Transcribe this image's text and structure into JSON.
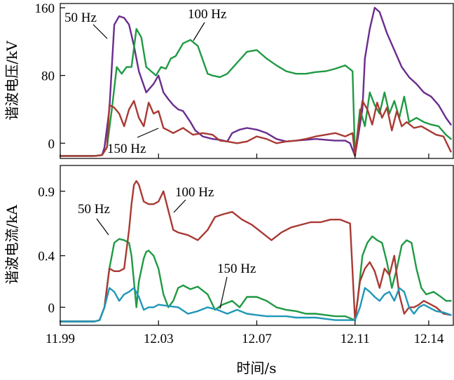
{
  "chart_data": [
    {
      "type": "line",
      "ylabel": "谐波电压/kV",
      "xlabel": "",
      "xlim": [
        11.99,
        12.15
      ],
      "ylim": [
        -18,
        165
      ],
      "yticks": [
        "0",
        "80",
        "160"
      ],
      "ytick_values": [
        0,
        80,
        160
      ],
      "xticks": [
        "11.99",
        "12.03",
        "12.07",
        "12.11",
        "12.14"
      ],
      "xtick_values": [
        11.99,
        12.03,
        12.07,
        12.11,
        12.14
      ],
      "show_xtick_labels": false,
      "series": [
        {
          "name": "50 Hz",
          "color": "#6a2c8e",
          "x": [
            11.99,
            12.0,
            12.004,
            12.007,
            12.008,
            12.01,
            12.012,
            12.014,
            12.016,
            12.018,
            12.02,
            12.022,
            12.025,
            12.028,
            12.03,
            12.032,
            12.034,
            12.036,
            12.038,
            12.04,
            12.043,
            12.045,
            12.048,
            12.052,
            12.055,
            12.058,
            12.06,
            12.063,
            12.066,
            12.07,
            12.074,
            12.078,
            12.082,
            12.086,
            12.09,
            12.094,
            12.098,
            12.102,
            12.106,
            12.108,
            12.11,
            12.113,
            12.114,
            12.116,
            12.118,
            12.12,
            12.123,
            12.126,
            12.129,
            12.132,
            12.135,
            12.138,
            12.141,
            12.144,
            12.147,
            12.149
          ],
          "y": [
            -15,
            -15,
            -15,
            -14,
            -5,
            40,
            140,
            150,
            148,
            140,
            115,
            85,
            60,
            70,
            80,
            60,
            52,
            45,
            40,
            38,
            25,
            15,
            8,
            5,
            4,
            2,
            12,
            16,
            18,
            16,
            12,
            5,
            2,
            3,
            4,
            5,
            4,
            3,
            3,
            0,
            -15,
            40,
            100,
            135,
            160,
            155,
            130,
            110,
            90,
            78,
            70,
            60,
            55,
            45,
            30,
            22
          ]
        },
        {
          "name": "100 Hz",
          "color": "#1f9a44",
          "x": [
            11.99,
            12.0,
            12.004,
            12.007,
            12.009,
            12.011,
            12.013,
            12.015,
            12.017,
            12.019,
            12.021,
            12.023,
            12.025,
            12.027,
            12.029,
            12.031,
            12.033,
            12.035,
            12.037,
            12.04,
            12.043,
            12.046,
            12.05,
            12.052,
            12.055,
            12.058,
            12.062,
            12.066,
            12.07,
            12.074,
            12.078,
            12.082,
            12.086,
            12.09,
            12.094,
            12.098,
            12.102,
            12.106,
            12.109,
            12.11,
            12.112,
            12.114,
            12.116,
            12.118,
            12.12,
            12.122,
            12.124,
            12.126,
            12.128,
            12.13,
            12.132,
            12.135,
            12.138,
            12.141,
            12.144,
            12.147,
            12.149
          ],
          "y": [
            -15,
            -15,
            -15,
            -14,
            -5,
            40,
            90,
            82,
            90,
            90,
            135,
            125,
            90,
            85,
            80,
            90,
            88,
            100,
            103,
            118,
            122,
            115,
            82,
            80,
            78,
            82,
            95,
            108,
            110,
            100,
            92,
            85,
            82,
            82,
            84,
            85,
            88,
            92,
            85,
            -15,
            40,
            20,
            60,
            45,
            35,
            60,
            35,
            50,
            30,
            55,
            25,
            30,
            25,
            22,
            20,
            10,
            5
          ]
        },
        {
          "name": "150 Hz",
          "color": "#a83a33",
          "x": [
            11.99,
            12.0,
            12.004,
            12.007,
            12.009,
            12.01,
            12.012,
            12.014,
            12.016,
            12.018,
            12.02,
            12.022,
            12.024,
            12.026,
            12.028,
            12.03,
            12.032,
            12.034,
            12.036,
            12.04,
            12.044,
            12.048,
            12.052,
            12.055,
            12.058,
            12.062,
            12.066,
            12.07,
            12.074,
            12.078,
            12.082,
            12.086,
            12.09,
            12.094,
            12.098,
            12.102,
            12.106,
            12.109,
            12.11,
            12.111,
            12.113,
            12.115,
            12.117,
            12.119,
            12.121,
            12.123,
            12.125,
            12.127,
            12.129,
            12.131,
            12.134,
            12.137,
            12.14,
            12.143,
            12.146,
            12.149
          ],
          "y": [
            -15,
            -15,
            -15,
            -14,
            -5,
            45,
            42,
            35,
            20,
            40,
            50,
            30,
            20,
            48,
            35,
            38,
            18,
            15,
            12,
            18,
            10,
            12,
            10,
            3,
            2,
            0,
            2,
            8,
            5,
            0,
            2,
            3,
            5,
            8,
            10,
            12,
            8,
            12,
            -15,
            10,
            50,
            40,
            22,
            48,
            30,
            42,
            15,
            38,
            20,
            25,
            18,
            20,
            15,
            10,
            8,
            -10
          ]
        }
      ],
      "annotations": [
        "50 Hz",
        "100 Hz",
        "150 Hz"
      ]
    },
    {
      "type": "line",
      "ylabel": "谐波电流/kA",
      "xlabel": "时间/s",
      "xlim": [
        11.99,
        12.15
      ],
      "ylim": [
        -0.14,
        1.1
      ],
      "yticks": [
        "0",
        "0.4",
        "0.9"
      ],
      "ytick_values": [
        0,
        0.4,
        0.9
      ],
      "xticks": [
        "11.99",
        "12.03",
        "12.07",
        "12.11",
        "12.14"
      ],
      "xtick_values": [
        11.99,
        12.03,
        12.07,
        12.11,
        12.14
      ],
      "show_xtick_labels": true,
      "series": [
        {
          "name": "50 Hz",
          "color": "#1f9a44",
          "x": [
            11.99,
            12.0,
            12.004,
            12.006,
            12.008,
            12.01,
            12.012,
            12.014,
            12.016,
            12.018,
            12.019,
            12.02,
            12.021,
            12.022,
            12.024,
            12.025,
            12.026,
            12.028,
            12.03,
            12.032,
            12.034,
            12.036,
            12.038,
            12.04,
            12.043,
            12.046,
            12.05,
            12.053,
            12.056,
            12.06,
            12.063,
            12.066,
            12.07,
            12.074,
            12.078,
            12.082,
            12.086,
            12.09,
            12.094,
            12.098,
            12.102,
            12.106,
            12.11,
            12.111,
            12.113,
            12.115,
            12.117,
            12.119,
            12.121,
            12.123,
            12.125,
            12.127,
            12.129,
            12.131,
            12.133,
            12.135,
            12.137,
            12.139,
            12.142,
            12.145,
            12.147,
            12.149
          ],
          "y": [
            -0.11,
            -0.11,
            -0.11,
            -0.1,
            0.0,
            0.3,
            0.5,
            0.53,
            0.52,
            0.5,
            0.4,
            0.2,
            0.0,
            0.2,
            0.38,
            0.43,
            0.44,
            0.4,
            0.3,
            0.1,
            0.0,
            0.05,
            0.15,
            0.17,
            0.14,
            0.16,
            0.1,
            -0.02,
            0.02,
            0.05,
            0.0,
            0.08,
            0.08,
            0.05,
            0.0,
            -0.02,
            -0.03,
            -0.05,
            -0.05,
            -0.06,
            -0.07,
            -0.07,
            -0.1,
            0.05,
            0.4,
            0.5,
            0.55,
            0.52,
            0.5,
            0.35,
            0.15,
            0.3,
            0.48,
            0.52,
            0.5,
            0.3,
            0.15,
            0.1,
            0.12,
            0.08,
            0.05,
            0.05
          ]
        },
        {
          "name": "100 Hz",
          "color": "#a83a33",
          "x": [
            11.99,
            12.0,
            12.004,
            12.006,
            12.008,
            12.01,
            12.012,
            12.014,
            12.016,
            12.018,
            12.019,
            12.02,
            12.021,
            12.022,
            12.024,
            12.026,
            12.028,
            12.03,
            12.032,
            12.034,
            12.036,
            12.038,
            12.042,
            12.046,
            12.05,
            12.053,
            12.056,
            12.06,
            12.064,
            12.068,
            12.072,
            12.076,
            12.08,
            12.084,
            12.088,
            12.092,
            12.096,
            12.1,
            12.104,
            12.108,
            12.11,
            12.112,
            12.114,
            12.116,
            12.118,
            12.12,
            12.122,
            12.124,
            12.126,
            12.128,
            12.13,
            12.132,
            12.134,
            12.136,
            12.138,
            12.14,
            12.143,
            12.146,
            12.149
          ],
          "y": [
            -0.11,
            -0.11,
            -0.11,
            -0.1,
            0.0,
            0.3,
            0.28,
            0.28,
            0.3,
            0.6,
            0.8,
            0.95,
            0.98,
            0.95,
            0.82,
            0.8,
            0.8,
            0.82,
            0.9,
            0.75,
            0.6,
            0.58,
            0.56,
            0.52,
            0.6,
            0.7,
            0.72,
            0.74,
            0.68,
            0.64,
            0.58,
            0.52,
            0.58,
            0.62,
            0.64,
            0.66,
            0.66,
            0.68,
            0.68,
            0.65,
            -0.1,
            0.2,
            0.3,
            0.35,
            0.28,
            0.15,
            0.3,
            0.25,
            0.4,
            0.1,
            -0.05,
            0.0,
            0.0,
            0.02,
            0.05,
            0.03,
            0.0,
            -0.05,
            -0.06
          ]
        },
        {
          "name": "150 Hz",
          "color": "#1f97b8",
          "x": [
            11.99,
            12.0,
            12.004,
            12.006,
            12.008,
            12.01,
            12.012,
            12.014,
            12.016,
            12.018,
            12.02,
            12.022,
            12.024,
            12.026,
            12.028,
            12.03,
            12.034,
            12.038,
            12.042,
            12.046,
            12.05,
            12.054,
            12.058,
            12.062,
            12.066,
            12.07,
            12.074,
            12.078,
            12.082,
            12.086,
            12.09,
            12.094,
            12.098,
            12.102,
            12.106,
            12.11,
            12.112,
            12.114,
            12.116,
            12.118,
            12.12,
            12.122,
            12.124,
            12.126,
            12.128,
            12.13,
            12.132,
            12.134,
            12.136,
            12.138,
            12.14,
            12.143,
            12.146,
            12.149
          ],
          "y": [
            -0.11,
            -0.11,
            -0.11,
            -0.1,
            0.0,
            0.15,
            0.12,
            0.05,
            0.1,
            0.12,
            0.15,
            0.08,
            -0.02,
            0.0,
            0.0,
            0.02,
            0.01,
            0.0,
            -0.05,
            -0.03,
            0.0,
            -0.02,
            -0.05,
            -0.02,
            -0.05,
            -0.06,
            -0.07,
            -0.07,
            -0.07,
            -0.08,
            -0.08,
            -0.08,
            -0.09,
            -0.1,
            -0.1,
            -0.1,
            0.0,
            0.15,
            0.12,
            0.08,
            0.05,
            0.1,
            0.12,
            0.05,
            0.15,
            0.12,
            0.0,
            -0.05,
            0.0,
            0.02,
            0.0,
            -0.03,
            -0.04,
            -0.06
          ]
        }
      ],
      "annotations": [
        "50 Hz",
        "100 Hz",
        "150 Hz"
      ]
    }
  ]
}
